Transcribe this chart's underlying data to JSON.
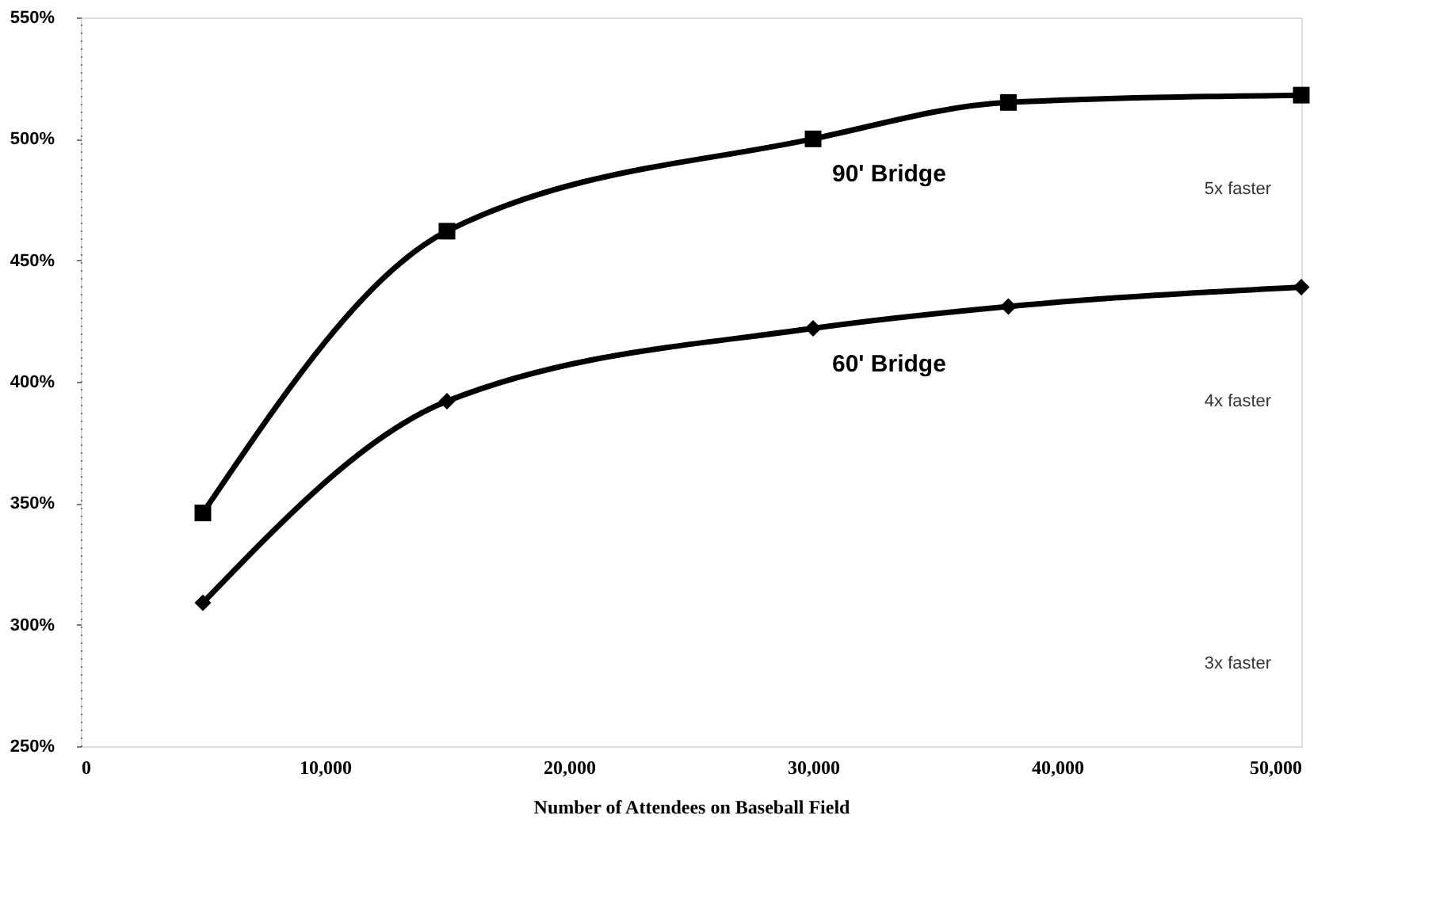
{
  "chart_data": {
    "type": "line",
    "xlabel": "Number of Attendees on Baseball Field",
    "x": [
      5000,
      15000,
      30000,
      38000,
      50000
    ],
    "series": [
      {
        "name": "90' Bridge",
        "color": "#000000",
        "marker": "square",
        "values": [
          346,
          462,
          500,
          515,
          518
        ]
      },
      {
        "name": "60' Bridge",
        "color": "#000000",
        "marker": "diamond",
        "values": [
          309,
          392,
          422,
          431,
          439
        ]
      }
    ],
    "xlim": [
      0,
      50000
    ],
    "xticks": [
      {
        "value": 0,
        "label": "0"
      },
      {
        "value": 10000,
        "label": "10,000"
      },
      {
        "value": 20000,
        "label": "20,000"
      },
      {
        "value": 30000,
        "label": "30,000"
      },
      {
        "value": 40000,
        "label": "40,000"
      },
      {
        "value": 50000,
        "label": "50,000"
      }
    ],
    "ylim": [
      250,
      550
    ],
    "yticks": [
      {
        "value": 250,
        "label": "250%"
      },
      {
        "value": 300,
        "label": "300%"
      },
      {
        "value": 350,
        "label": "350%"
      },
      {
        "value": 400,
        "label": "400%"
      },
      {
        "value": 450,
        "label": "450%"
      },
      {
        "value": 500,
        "label": "500%"
      },
      {
        "value": 550,
        "label": "550%"
      }
    ],
    "annotations": [
      "5x faster",
      "4x faster",
      "3x faster"
    ],
    "grid": false,
    "line_style": "solid"
  }
}
